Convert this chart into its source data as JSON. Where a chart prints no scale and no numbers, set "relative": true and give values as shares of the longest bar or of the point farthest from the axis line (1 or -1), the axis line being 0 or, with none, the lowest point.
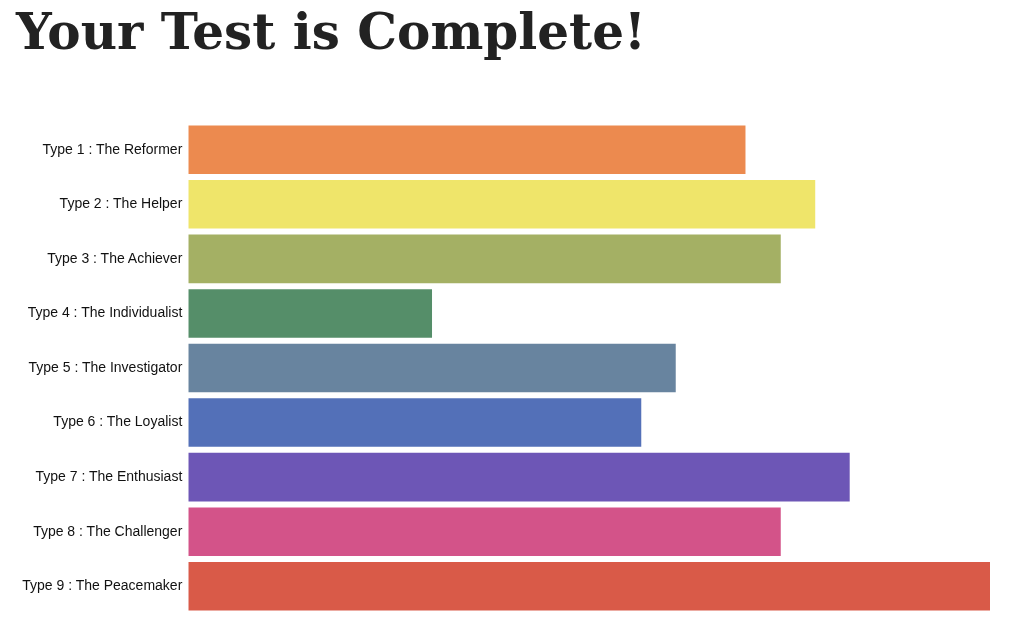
{
  "chart_data": {
    "type": "bar",
    "title": "Your Test is Complete!",
    "orientation": "horizontal",
    "relative": true,
    "categories": [
      "Type 1 : The Reformer",
      "Type 2 : The Helper",
      "Type 3 : The Achiever",
      "Type 4 : The Individualist",
      "Type 5 : The Investigator",
      "Type 6 : The Loyalist",
      "Type 7 : The Enthusiast",
      "Type 8 : The Challenger",
      "Type 9 : The Peacemaker"
    ],
    "values": [
      0.695,
      0.782,
      0.739,
      0.304,
      0.608,
      0.565,
      0.825,
      0.739,
      1
    ],
    "colors": [
      "#ec8a4f",
      "#efe56a",
      "#a4b064",
      "#558e69",
      "#68849f",
      "#5370b8",
      "#6d56b6",
      "#d35389",
      "#d95a48"
    ],
    "grid": false,
    "legend": false
  }
}
